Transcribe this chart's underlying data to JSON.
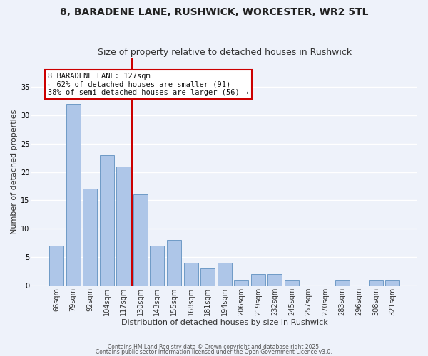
{
  "title": "8, BARADENE LANE, RUSHWICK, WORCESTER, WR2 5TL",
  "subtitle": "Size of property relative to detached houses in Rushwick",
  "xlabel": "Distribution of detached houses by size in Rushwick",
  "ylabel": "Number of detached properties",
  "categories": [
    "66sqm",
    "79sqm",
    "92sqm",
    "104sqm",
    "117sqm",
    "130sqm",
    "143sqm",
    "155sqm",
    "168sqm",
    "181sqm",
    "194sqm",
    "206sqm",
    "219sqm",
    "232sqm",
    "245sqm",
    "257sqm",
    "270sqm",
    "283sqm",
    "296sqm",
    "308sqm",
    "321sqm"
  ],
  "values": [
    7,
    32,
    17,
    23,
    21,
    16,
    7,
    8,
    4,
    3,
    4,
    1,
    2,
    2,
    1,
    0,
    0,
    1,
    0,
    1,
    1
  ],
  "bar_color": "#aec6e8",
  "bar_edge_color": "#6090c0",
  "vline_x_idx": 5,
  "vline_color": "#cc0000",
  "annotation_text": "8 BARADENE LANE: 127sqm\n← 62% of detached houses are smaller (91)\n38% of semi-detached houses are larger (56) →",
  "annotation_box_color": "#ffffff",
  "annotation_box_edge_color": "#cc0000",
  "annotation_fontsize": 7.5,
  "ylim": [
    0,
    40
  ],
  "yticks": [
    0,
    5,
    10,
    15,
    20,
    25,
    30,
    35
  ],
  "footer1": "Contains HM Land Registry data © Crown copyright and database right 2025.",
  "footer2": "Contains public sector information licensed under the Open Government Licence v3.0.",
  "background_color": "#eef2fa",
  "grid_color": "#ffffff",
  "title_fontsize": 10,
  "subtitle_fontsize": 9,
  "xlabel_fontsize": 8,
  "ylabel_fontsize": 8,
  "tick_fontsize": 7
}
